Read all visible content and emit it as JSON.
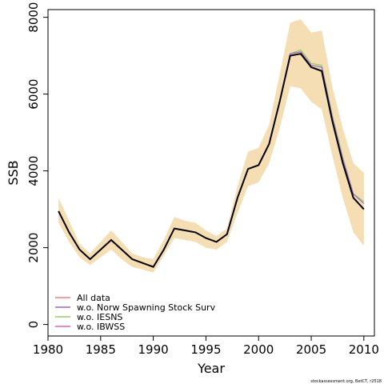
{
  "chart_data": {
    "type": "line",
    "xlabel": "Year",
    "ylabel": "SSB",
    "xlim": [
      1980,
      2011
    ],
    "ylim": [
      -300,
      8200
    ],
    "x_ticks": [
      1980,
      1985,
      1990,
      1995,
      2000,
      2005,
      2010
    ],
    "y_ticks": [
      0,
      2000,
      4000,
      6000,
      8000
    ],
    "x": [
      1981,
      1982,
      1983,
      1984,
      1985,
      1986,
      1987,
      1988,
      1989,
      1990,
      1991,
      1992,
      1993,
      1994,
      1995,
      1996,
      1997,
      1998,
      1999,
      2000,
      2001,
      2002,
      2003,
      2004,
      2005,
      2006,
      2007,
      2008,
      2009,
      2010
    ],
    "band": {
      "color": "#f5deb3",
      "lower": [
        2650,
        2150,
        1750,
        1550,
        1750,
        1950,
        1700,
        1500,
        1430,
        1350,
        1800,
        2250,
        2200,
        2150,
        2000,
        1950,
        2150,
        2900,
        3600,
        3700,
        4200,
        5100,
        6200,
        6150,
        5800,
        5600,
        4400,
        3300,
        2400,
        2050
      ],
      "upper": [
        3300,
        2700,
        2100,
        1850,
        2150,
        2450,
        2150,
        1850,
        1750,
        1700,
        2200,
        2800,
        2700,
        2650,
        2450,
        2300,
        2500,
        3600,
        4500,
        4600,
        5200,
        6500,
        7850,
        7950,
        7600,
        7650,
        6200,
        5100,
        4200,
        3950
      ]
    },
    "series": [
      {
        "name": "All data",
        "color": "#000000",
        "values": [
          2950,
          2400,
          1950,
          1700,
          1950,
          2200,
          1950,
          1700,
          1600,
          1500,
          1950,
          2500,
          2450,
          2400,
          2250,
          2150,
          2350,
          3300,
          4050,
          4150,
          4700,
          5800,
          7000,
          7050,
          6700,
          6600,
          5300,
          4200,
          3300,
          3000
        ]
      },
      {
        "name": "w.o. Norw Spawning Stock Surv",
        "color": "#9966cc",
        "values": [
          2950,
          2400,
          1950,
          1700,
          1950,
          2200,
          1950,
          1700,
          1600,
          1500,
          1950,
          2500,
          2450,
          2400,
          2250,
          2150,
          2350,
          3300,
          4050,
          4150,
          4700,
          5800,
          7050,
          7100,
          6750,
          6700,
          5400,
          4300,
          3400,
          3150
        ]
      },
      {
        "name": "w.o. IESNS",
        "color": "#99cc66",
        "values": [
          2950,
          2400,
          1950,
          1700,
          1950,
          2200,
          1950,
          1700,
          1600,
          1500,
          1950,
          2500,
          2450,
          2400,
          2250,
          2150,
          2350,
          3300,
          4050,
          4150,
          4700,
          5800,
          7050,
          7150,
          6800,
          6750,
          5450,
          4350,
          3400,
          3200
        ]
      },
      {
        "name": "w.o. IBWSS",
        "color": "#e066b3",
        "values": [
          2950,
          2400,
          1950,
          1700,
          1950,
          2200,
          1950,
          1700,
          1600,
          1500,
          1950,
          2500,
          2450,
          2400,
          2250,
          2150,
          2350,
          3300,
          4050,
          4150,
          4700,
          5800,
          7000,
          7050,
          6700,
          6600,
          5300,
          4200,
          3300,
          3000
        ]
      }
    ],
    "legend_position": "bottom-left",
    "grid": false
  },
  "legend": {
    "items": [
      {
        "label": "All data",
        "color": "#f08080"
      },
      {
        "label": "w.o. Norw Spawning Stock Surv",
        "color": "#9966cc"
      },
      {
        "label": "w.o. IESNS",
        "color": "#99cc66"
      },
      {
        "label": "w.o. IBWSS",
        "color": "#e066b3"
      }
    ]
  },
  "footnote": "stockassessment.org, BetCT, r2518"
}
